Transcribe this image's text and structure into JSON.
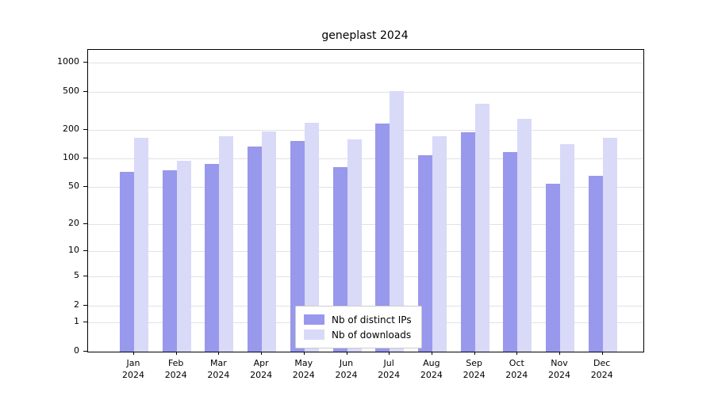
{
  "chart_data": {
    "type": "bar",
    "title": "geneplast 2024",
    "categories": [
      "Jan 2024",
      "Feb 2024",
      "Mar 2024",
      "Apr 2024",
      "May 2024",
      "Jun 2024",
      "Jul 2024",
      "Aug 2024",
      "Sep 2024",
      "Oct 2024",
      "Nov 2024",
      "Dec 2024"
    ],
    "series": [
      {
        "name": "Nb of distinct IPs",
        "color": "#9898ec",
        "values": [
          72,
          76,
          88,
          134,
          152,
          82,
          232,
          108,
          190,
          118,
          54,
          66
        ]
      },
      {
        "name": "Nb of downloads",
        "color": "#d9d9f8",
        "values": [
          165,
          95,
          172,
          192,
          238,
          160,
          505,
          170,
          373,
          262,
          142,
          165
        ]
      }
    ],
    "yscale": "log1p",
    "yticks": [
      0,
      1,
      2,
      5,
      10,
      20,
      50,
      100,
      200,
      500,
      1000
    ],
    "ylim": [
      0,
      1100
    ],
    "grid": "horizontal",
    "legend_position": "bottom-center-inside"
  }
}
